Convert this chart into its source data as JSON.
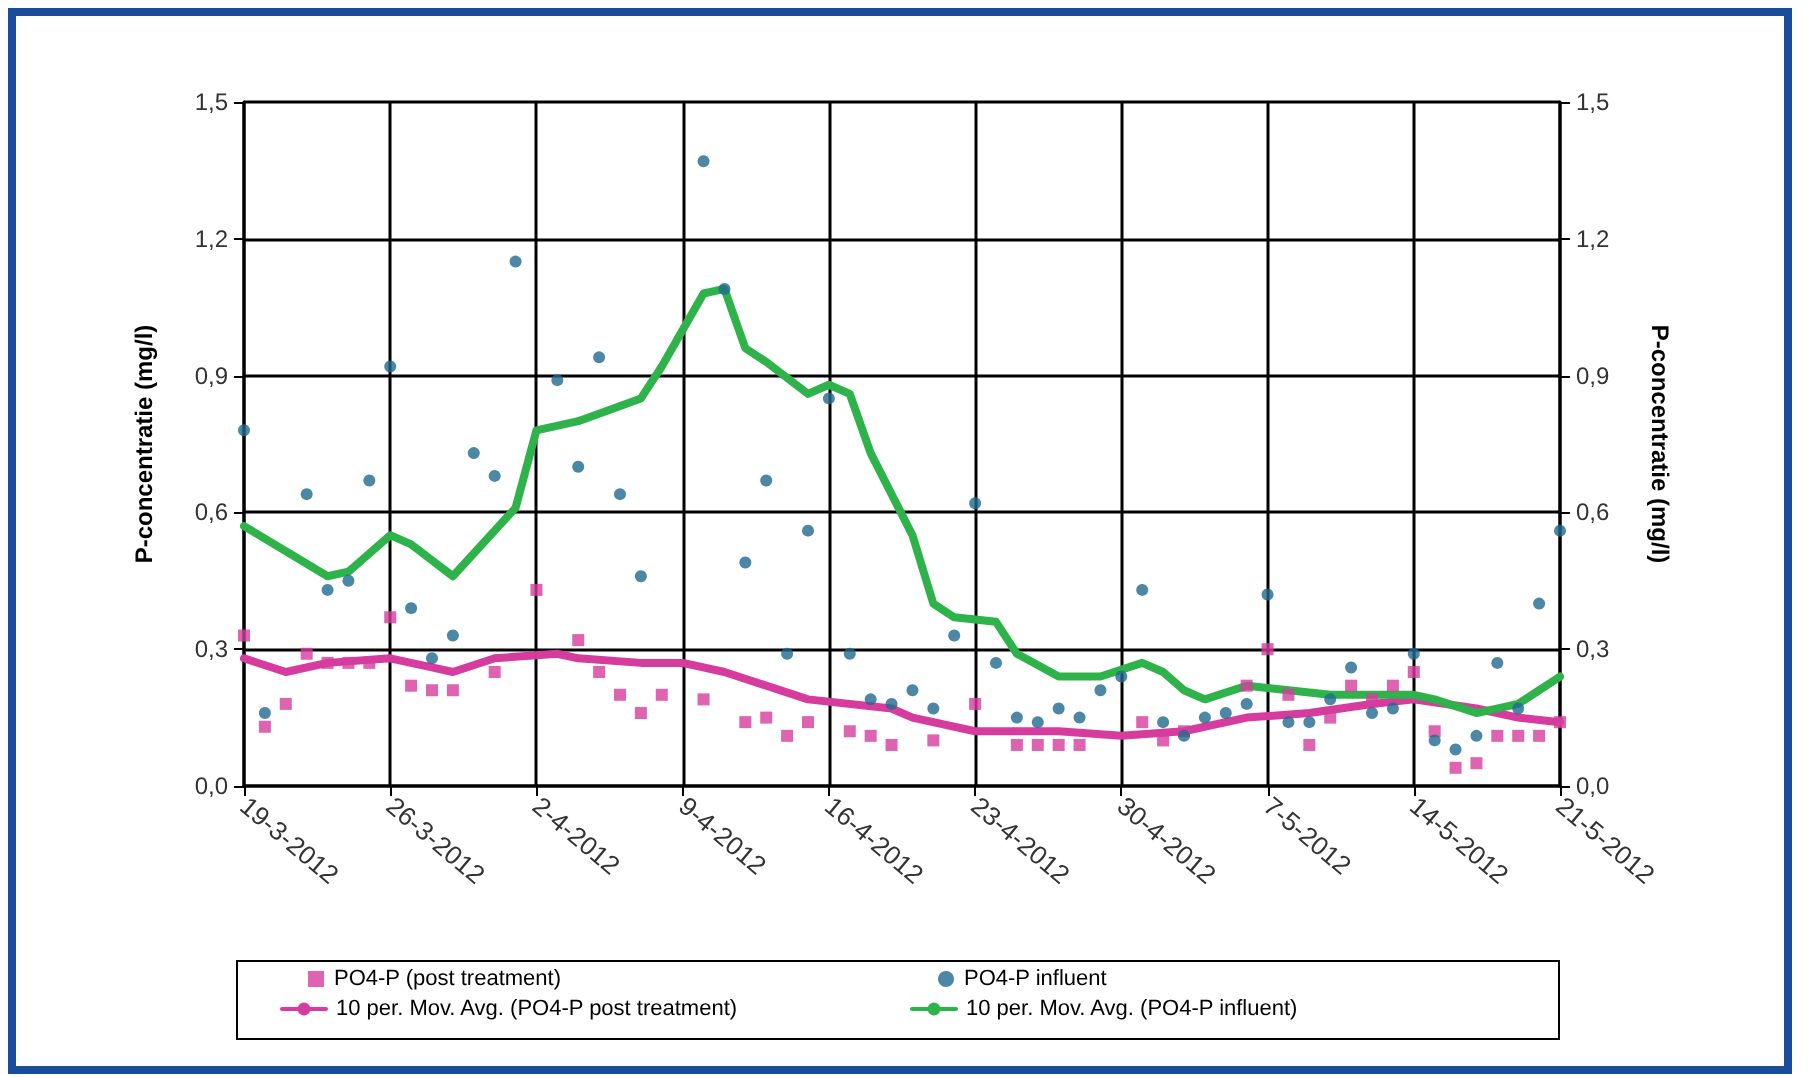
{
  "chart_data": {
    "type": "scatter",
    "ylabel": "P-concentratie (mg/l)",
    "y2label": "P-concentratie (mg/l)",
    "xlim": [
      "2012-03-19",
      "2012-05-21"
    ],
    "xticks": [
      {
        "value": "2012-03-19",
        "label": "19-3-2012"
      },
      {
        "value": "2012-03-26",
        "label": "26-3-2012"
      },
      {
        "value": "2012-04-02",
        "label": "2-4-2012"
      },
      {
        "value": "2012-04-09",
        "label": "9-4-2012"
      },
      {
        "value": "2012-04-16",
        "label": "16-4-2012"
      },
      {
        "value": "2012-04-23",
        "label": "23-4-2012"
      },
      {
        "value": "2012-04-30",
        "label": "30-4-2012"
      },
      {
        "value": "2012-05-07",
        "label": "7-5-2012"
      },
      {
        "value": "2012-05-14",
        "label": "14-5-2012"
      },
      {
        "value": "2012-05-21",
        "label": "21-5-2012"
      }
    ],
    "ylim": [
      0,
      1.5
    ],
    "yticks": [
      {
        "value": 0,
        "label": "0,0"
      },
      {
        "value": 0.3,
        "label": "0,3"
      },
      {
        "value": 0.6,
        "label": "0,6"
      },
      {
        "value": 0.9,
        "label": "0,9"
      },
      {
        "value": 1.2,
        "label": "1,2"
      },
      {
        "value": 1.5,
        "label": "1,5"
      }
    ],
    "y2lim": [
      0,
      1.5
    ],
    "y2ticks": [
      {
        "value": 0,
        "label": "0,0"
      },
      {
        "value": 0.3,
        "label": "0,3"
      },
      {
        "value": 0.6,
        "label": "0,6"
      },
      {
        "value": 0.9,
        "label": "0,9"
      },
      {
        "value": 1.2,
        "label": "1,2"
      },
      {
        "value": 1.5,
        "label": "1,5"
      }
    ],
    "grid": true,
    "legend": "bottom",
    "series": [
      {
        "name": "PO4-P (post treatment)",
        "marker": "square",
        "color": "#d63c9e",
        "x": [
          "2012-03-19",
          "2012-03-20",
          "2012-03-21",
          "2012-03-22",
          "2012-03-23",
          "2012-03-24",
          "2012-03-25",
          "2012-03-26",
          "2012-03-27",
          "2012-03-28",
          "2012-03-29",
          "2012-03-31",
          "2012-04-02",
          "2012-04-04",
          "2012-04-05",
          "2012-04-06",
          "2012-04-07",
          "2012-04-08",
          "2012-04-10",
          "2012-04-12",
          "2012-04-13",
          "2012-04-14",
          "2012-04-15",
          "2012-04-17",
          "2012-04-18",
          "2012-04-19",
          "2012-04-21",
          "2012-04-23",
          "2012-04-25",
          "2012-04-26",
          "2012-04-27",
          "2012-04-28",
          "2012-05-01",
          "2012-05-02",
          "2012-05-03",
          "2012-05-06",
          "2012-05-07",
          "2012-05-08",
          "2012-05-09",
          "2012-05-10",
          "2012-05-11",
          "2012-05-12",
          "2012-05-13",
          "2012-05-14",
          "2012-05-15",
          "2012-05-16",
          "2012-05-17",
          "2012-05-18",
          "2012-05-19",
          "2012-05-20",
          "2012-05-21"
        ],
        "values": [
          0.33,
          0.13,
          0.18,
          0.29,
          0.27,
          0.27,
          0.27,
          0.37,
          0.22,
          0.21,
          0.21,
          0.25,
          0.43,
          0.32,
          0.25,
          0.2,
          0.16,
          0.2,
          0.19,
          0.14,
          0.15,
          0.11,
          0.14,
          0.12,
          0.11,
          0.09,
          0.1,
          0.18,
          0.09,
          0.09,
          0.09,
          0.09,
          0.14,
          0.1,
          0.12,
          0.22,
          0.3,
          0.2,
          0.09,
          0.15,
          0.22,
          0.19,
          0.22,
          0.25,
          0.12,
          0.04,
          0.05,
          0.11,
          0.11,
          0.11,
          0.14
        ]
      },
      {
        "name": "PO4-P influent",
        "marker": "circle",
        "color": "#1f6a8e",
        "x": [
          "2012-03-19",
          "2012-03-20",
          "2012-03-22",
          "2012-03-23",
          "2012-03-24",
          "2012-03-25",
          "2012-03-26",
          "2012-03-27",
          "2012-03-28",
          "2012-03-29",
          "2012-03-30",
          "2012-03-31",
          "2012-04-01",
          "2012-04-03",
          "2012-04-04",
          "2012-04-05",
          "2012-04-06",
          "2012-04-07",
          "2012-04-10",
          "2012-04-11",
          "2012-04-12",
          "2012-04-13",
          "2012-04-14",
          "2012-04-15",
          "2012-04-16",
          "2012-04-17",
          "2012-04-18",
          "2012-04-19",
          "2012-04-20",
          "2012-04-21",
          "2012-04-22",
          "2012-04-23",
          "2012-04-24",
          "2012-04-25",
          "2012-04-26",
          "2012-04-27",
          "2012-04-28",
          "2012-04-29",
          "2012-04-30",
          "2012-05-01",
          "2012-05-02",
          "2012-05-03",
          "2012-05-04",
          "2012-05-05",
          "2012-05-06",
          "2012-05-07",
          "2012-05-08",
          "2012-05-09",
          "2012-05-10",
          "2012-05-11",
          "2012-05-12",
          "2012-05-13",
          "2012-05-14",
          "2012-05-15",
          "2012-05-16",
          "2012-05-17",
          "2012-05-18",
          "2012-05-19",
          "2012-05-20",
          "2012-05-21"
        ],
        "values": [
          0.78,
          0.16,
          0.64,
          0.43,
          0.45,
          0.67,
          0.92,
          0.39,
          0.28,
          0.33,
          0.73,
          0.68,
          1.15,
          0.89,
          0.7,
          0.94,
          0.64,
          0.46,
          1.37,
          1.09,
          0.49,
          0.67,
          0.29,
          0.56,
          0.85,
          0.29,
          0.19,
          0.18,
          0.21,
          0.17,
          0.33,
          0.62,
          0.27,
          0.15,
          0.14,
          0.17,
          0.15,
          0.21,
          0.24,
          0.43,
          0.14,
          0.11,
          0.15,
          0.16,
          0.18,
          0.42,
          0.14,
          0.14,
          0.19,
          0.26,
          0.16,
          0.17,
          0.29,
          0.1,
          0.08,
          0.11,
          0.27,
          0.17,
          0.4,
          0.56
        ]
      },
      {
        "name": "10 per. Mov. Avg. (PO4-P post treatment)",
        "type": "line",
        "marker": "none",
        "line_style": "solid",
        "color": "#d63c9e",
        "x": [
          "2012-03-19",
          "2012-03-21",
          "2012-03-23",
          "2012-03-26",
          "2012-03-28",
          "2012-03-29",
          "2012-03-31",
          "2012-04-03",
          "2012-04-04",
          "2012-04-07",
          "2012-04-09",
          "2012-04-11",
          "2012-04-15",
          "2012-04-19",
          "2012-04-20",
          "2012-04-23",
          "2012-04-27",
          "2012-04-30",
          "2012-05-03",
          "2012-05-06",
          "2012-05-09",
          "2012-05-12",
          "2012-05-14",
          "2012-05-17",
          "2012-05-19",
          "2012-05-21"
        ],
        "values": [
          0.28,
          0.25,
          0.27,
          0.28,
          0.26,
          0.25,
          0.28,
          0.29,
          0.28,
          0.27,
          0.27,
          0.25,
          0.19,
          0.17,
          0.15,
          0.12,
          0.12,
          0.11,
          0.12,
          0.15,
          0.16,
          0.18,
          0.19,
          0.17,
          0.15,
          0.14
        ]
      },
      {
        "name": "10 per. Mov. Avg. (PO4-P influent)",
        "type": "line",
        "marker": "none",
        "line_style": "solid",
        "color": "#2eb34a",
        "x": [
          "2012-03-19",
          "2012-03-23",
          "2012-03-24",
          "2012-03-26",
          "2012-03-27",
          "2012-03-29",
          "2012-04-01",
          "2012-04-02",
          "2012-04-04",
          "2012-04-07",
          "2012-04-08",
          "2012-04-10",
          "2012-04-11",
          "2012-04-12",
          "2012-04-13",
          "2012-04-15",
          "2012-04-16",
          "2012-04-17",
          "2012-04-18",
          "2012-04-20",
          "2012-04-21",
          "2012-04-22",
          "2012-04-24",
          "2012-04-25",
          "2012-04-27",
          "2012-04-29",
          "2012-05-01",
          "2012-05-02",
          "2012-05-03",
          "2012-05-04",
          "2012-05-06",
          "2012-05-08",
          "2012-05-10",
          "2012-05-12",
          "2012-05-14",
          "2012-05-15",
          "2012-05-17",
          "2012-05-19",
          "2012-05-21"
        ],
        "values": [
          0.57,
          0.46,
          0.47,
          0.55,
          0.53,
          0.46,
          0.61,
          0.78,
          0.8,
          0.85,
          0.92,
          1.08,
          1.09,
          0.96,
          0.93,
          0.86,
          0.88,
          0.86,
          0.73,
          0.55,
          0.4,
          0.37,
          0.36,
          0.29,
          0.24,
          0.24,
          0.27,
          0.25,
          0.21,
          0.19,
          0.22,
          0.21,
          0.2,
          0.2,
          0.2,
          0.19,
          0.16,
          0.18,
          0.24
        ]
      }
    ]
  }
}
